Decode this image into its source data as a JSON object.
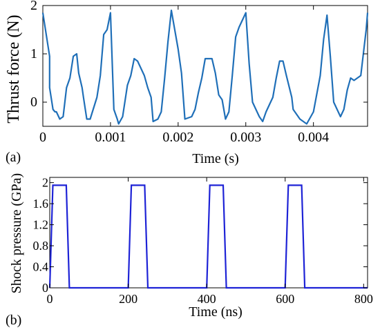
{
  "panel_labels": {
    "a": "(a)",
    "b": "(b)"
  },
  "colors": {
    "top_line": "#1f6fb8",
    "bottom_line": "#1d22d6",
    "axis": "#000000"
  },
  "chart_data": [
    {
      "type": "line",
      "title": "",
      "xlabel": "Time (s)",
      "ylabel": "Thrust force (N)",
      "xlim": [
        0,
        0.0048
      ],
      "ylim": [
        -0.5,
        2
      ],
      "x_ticks": [
        0,
        0.001,
        0.002,
        0.003,
        0.004
      ],
      "x_tick_labels": [
        "0",
        "0.001",
        "0.002",
        "0.003",
        "0.004"
      ],
      "y_ticks": [
        0,
        1,
        2
      ],
      "y_tick_labels": [
        "0",
        "1",
        "2"
      ],
      "grid": false,
      "series": [
        {
          "x": [
            0,
            0.0001,
            0.0001,
            0.00015,
            0.00018,
            0.0002,
            0.00025,
            0.0003,
            0.00035,
            0.0004,
            0.00045,
            0.0005,
            0.00053,
            0.00058,
            0.0006,
            0.00065,
            0.0007,
            0.0008,
            0.00085,
            0.0009,
            0.00095,
            0.001,
            0.00105,
            0.0011,
            0.00112,
            0.00118,
            0.00125,
            0.0013,
            0.00135,
            0.0014,
            0.0015,
            0.00155,
            0.0016,
            0.00163,
            0.0017,
            0.00175,
            0.0018,
            0.00185,
            0.0019,
            0.002,
            0.00205,
            0.0021,
            0.0022,
            0.00225,
            0.0023,
            0.00235,
            0.0024,
            0.0025,
            0.00255,
            0.0026,
            0.00265,
            0.0027,
            0.00275,
            0.0028,
            0.00285,
            0.0029,
            0.003,
            0.00305,
            0.0031,
            0.00315,
            0.0032,
            0.00325,
            0.0033,
            0.0034,
            0.00345,
            0.0035,
            0.00355,
            0.0036,
            0.00368,
            0.0037,
            0.0038,
            0.0039,
            0.004,
            0.0041,
            0.00415,
            0.0042,
            0.00425,
            0.0043,
            0.0044,
            0.00445,
            0.0045,
            0.00455,
            0.0046,
            0.0047,
            0.00478,
            0.0048
          ],
          "y": [
            1.85,
            0.95,
            0.3,
            -0.15,
            -0.2,
            -0.2,
            -0.35,
            -0.3,
            0.3,
            0.5,
            0.95,
            1.0,
            0.6,
            0.3,
            0.1,
            -0.35,
            -0.35,
            0.1,
            0.55,
            1.4,
            1.5,
            1.85,
            -0.15,
            -0.35,
            -0.45,
            -0.3,
            0.35,
            0.55,
            0.9,
            0.85,
            0.55,
            0.3,
            0.1,
            -0.4,
            -0.35,
            -0.2,
            0.5,
            1.25,
            1.9,
            1.1,
            0.6,
            -0.35,
            -0.3,
            -0.15,
            0.2,
            0.5,
            0.9,
            0.9,
            0.6,
            0.15,
            0.05,
            -0.35,
            -0.2,
            0.55,
            1.35,
            1.55,
            1.85,
            0.8,
            0.0,
            -0.15,
            -0.3,
            -0.4,
            -0.2,
            0.1,
            0.5,
            0.85,
            0.85,
            0.55,
            0.1,
            -0.15,
            -0.35,
            -0.45,
            -0.2,
            0.55,
            1.3,
            1.8,
            0.95,
            0.0,
            -0.3,
            -0.15,
            0.25,
            0.5,
            0.45,
            0.55,
            1.5,
            1.85
          ]
        }
      ]
    },
    {
      "type": "line",
      "title": "",
      "xlabel": "Time (ns)",
      "ylabel": "Shock pressure (GPa)",
      "xlim": [
        0,
        810
      ],
      "ylim": [
        0,
        2.1
      ],
      "x_ticks": [
        0,
        200,
        400,
        600,
        800
      ],
      "x_tick_labels": [
        "0",
        "200",
        "400",
        "600",
        "800"
      ],
      "y_ticks": [
        0,
        0.4,
        0.8,
        1.2,
        1.6,
        2
      ],
      "y_tick_labels": [
        "0",
        "0.4",
        "0.8",
        "1.2",
        "1.6",
        "2"
      ],
      "grid": false,
      "series": [
        {
          "x": [
            0,
            8,
            42,
            50,
            200,
            208,
            242,
            250,
            400,
            408,
            442,
            450,
            600,
            608,
            642,
            650,
            810
          ],
          "y": [
            0,
            1.95,
            1.95,
            0,
            0,
            1.95,
            1.95,
            0,
            0,
            1.95,
            1.95,
            0,
            0,
            1.95,
            1.95,
            0,
            0
          ]
        }
      ]
    }
  ]
}
